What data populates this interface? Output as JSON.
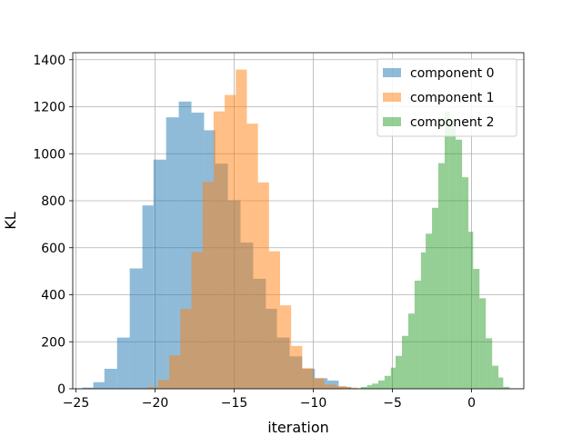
{
  "chart_data": {
    "type": "histogram",
    "xlabel": "iteration",
    "ylabel": "KL",
    "xlim": [
      -25.2,
      3.3
    ],
    "ylim": [
      0,
      1430
    ],
    "grid": true,
    "legend_position": "top-right",
    "x_ticks": [
      -25,
      -20,
      -15,
      -10,
      -5,
      0
    ],
    "x_tick_labels": [
      "−25",
      "−20",
      "−15",
      "−10",
      "−5",
      "0"
    ],
    "y_ticks": [
      0,
      200,
      400,
      600,
      800,
      1000,
      1200,
      1400
    ],
    "y_tick_labels": [
      "0",
      "200",
      "400",
      "600",
      "800",
      "1000",
      "1200",
      "1400"
    ],
    "series": [
      {
        "name": "component 0",
        "color": "#1f77b4",
        "bin_edges": [
          -24.6,
          -23.9,
          -23.2,
          -22.4,
          -21.6,
          -20.8,
          -20.1,
          -19.3,
          -18.5,
          -17.7,
          -16.9,
          -16.2,
          -15.4,
          -14.6,
          -13.8,
          -13.0,
          -12.3,
          -11.5,
          -10.7,
          -9.9,
          -9.1,
          -8.4,
          -7.6
        ],
        "counts": [
          5,
          28,
          85,
          218,
          512,
          780,
          975,
          1155,
          1222,
          1175,
          1100,
          958,
          802,
          622,
          468,
          340,
          218,
          138,
          85,
          45,
          35,
          8
        ]
      },
      {
        "name": "component 1",
        "color": "#ff7f0e",
        "bin_edges": [
          -20.5,
          -19.8,
          -19.1,
          -18.4,
          -17.7,
          -17.0,
          -16.3,
          -15.6,
          -14.9,
          -14.2,
          -13.5,
          -12.8,
          -12.1,
          -11.4,
          -10.7,
          -10.0,
          -9.3,
          -8.6,
          -7.9,
          -7.2
        ],
        "counts": [
          8,
          38,
          142,
          340,
          582,
          880,
          1180,
          1250,
          1358,
          1128,
          878,
          585,
          355,
          182,
          88,
          45,
          18,
          12,
          5
        ]
      },
      {
        "name": "component 2",
        "color": "#2ca02c",
        "bin_edges": [
          -7.0,
          -6.6,
          -6.3,
          -5.9,
          -5.5,
          -5.1,
          -4.8,
          -4.4,
          -4.0,
          -3.6,
          -3.2,
          -2.9,
          -2.5,
          -2.1,
          -1.7,
          -1.4,
          -1.0,
          -0.6,
          -0.2,
          0.1,
          0.5,
          0.9,
          1.3,
          1.7,
          2.0,
          2.4
        ],
        "counts": [
          8,
          15,
          22,
          35,
          55,
          90,
          140,
          225,
          320,
          460,
          580,
          660,
          770,
          960,
          1180,
          1140,
          1060,
          900,
          668,
          510,
          385,
          215,
          98,
          48,
          8
        ]
      }
    ]
  }
}
